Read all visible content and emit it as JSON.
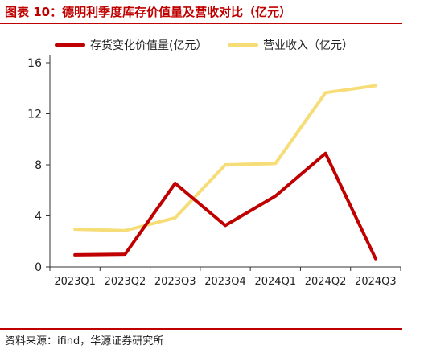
{
  "header": {
    "title": "图表 10：德明利季度库存价值量及营收对比（亿元）"
  },
  "footer": {
    "source": "资料来源：ifind，华源证券研究所"
  },
  "chart_data": {
    "type": "line",
    "title": "",
    "xlabel": "",
    "ylabel": "",
    "categories": [
      "2023Q1",
      "2023Q2",
      "2023Q3",
      "2023Q4",
      "2024Q1",
      "2024Q2",
      "2024Q3"
    ],
    "ylim": [
      0,
      16
    ],
    "yticks": [
      0,
      4,
      8,
      12,
      16
    ],
    "grid": false,
    "legend_position": "top",
    "series": [
      {
        "name": "存货变化价值量(亿元）",
        "color": "#c00000",
        "values": [
          0.95,
          1.0,
          6.55,
          3.25,
          5.55,
          8.9,
          0.65
        ]
      },
      {
        "name": "营业收入（亿元）",
        "color": "#f6dd78",
        "values": [
          2.95,
          2.85,
          3.85,
          8.0,
          8.1,
          13.65,
          14.2
        ]
      }
    ]
  }
}
